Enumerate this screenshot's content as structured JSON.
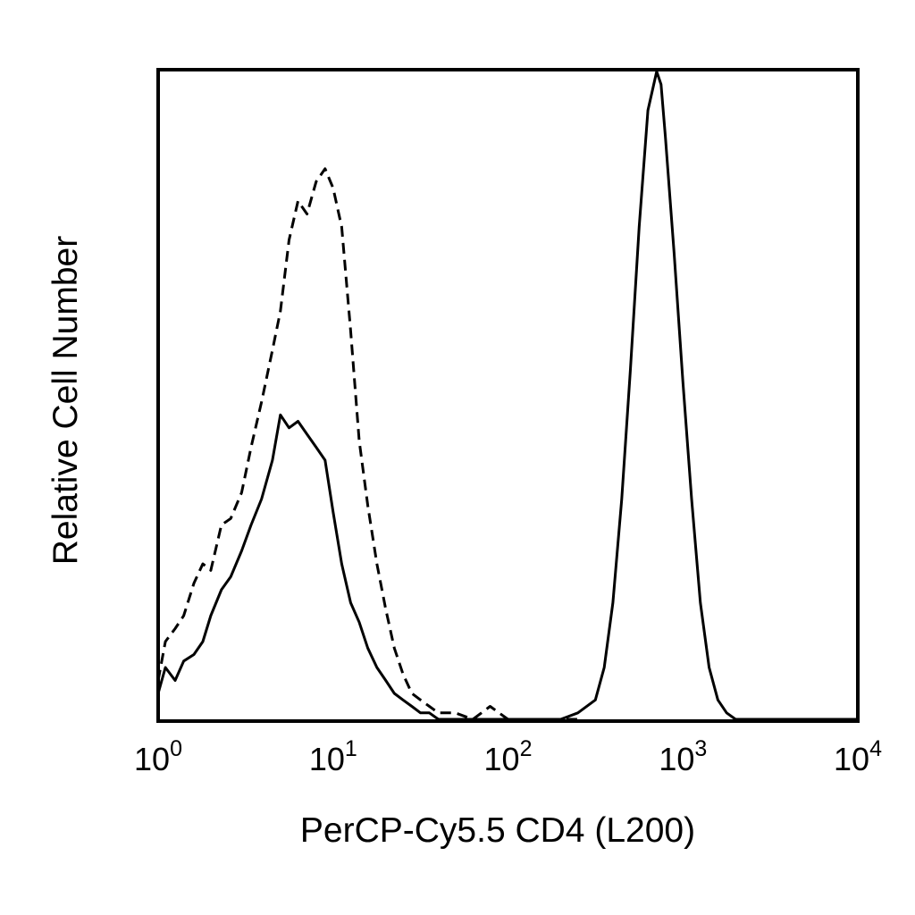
{
  "chart_data": {
    "type": "line",
    "title": "",
    "xlabel": "PerCP-Cy5.5 CD4 (L200)",
    "ylabel": "Relative Cell Number",
    "x_scale": "log",
    "xlim": [
      1,
      10000
    ],
    "ylim": [
      0,
      1
    ],
    "x_ticks": [
      {
        "value": 1,
        "base": "10",
        "exp": "0"
      },
      {
        "value": 10,
        "base": "10",
        "exp": "1"
      },
      {
        "value": 100,
        "base": "10",
        "exp": "2"
      },
      {
        "value": 1000,
        "base": "10",
        "exp": "3"
      },
      {
        "value": 10000,
        "base": "10",
        "exp": "4"
      }
    ],
    "grid": false,
    "legend": "none",
    "series": [
      {
        "style": "dashed",
        "x": [
          1.0,
          1.1,
          1.25,
          1.4,
          1.6,
          1.8,
          2.0,
          2.3,
          2.6,
          3.0,
          3.4,
          3.9,
          4.5,
          5.0,
          5.6,
          6.3,
          7.1,
          8.0,
          9.0,
          10.0,
          11.2,
          12.6,
          14.1,
          15.8,
          17.8,
          20.0,
          22.4,
          25.1,
          28.2,
          31.6,
          35.5,
          40.0,
          50.0,
          63.0,
          79.0,
          100.0,
          126.0,
          158.0,
          200.0,
          251.0
        ],
        "y": [
          0.06,
          0.12,
          0.14,
          0.16,
          0.21,
          0.24,
          0.23,
          0.3,
          0.31,
          0.35,
          0.42,
          0.49,
          0.57,
          0.63,
          0.74,
          0.8,
          0.78,
          0.83,
          0.85,
          0.82,
          0.76,
          0.6,
          0.43,
          0.33,
          0.24,
          0.17,
          0.11,
          0.07,
          0.04,
          0.03,
          0.02,
          0.01,
          0.01,
          0.0,
          0.02,
          0.0,
          0.0,
          0.0,
          0.0,
          0.0
        ]
      },
      {
        "style": "solid",
        "x": [
          1.0,
          1.1,
          1.25,
          1.4,
          1.6,
          1.8,
          2.0,
          2.3,
          2.6,
          3.0,
          3.4,
          3.9,
          4.5,
          5.0,
          5.6,
          6.3,
          7.1,
          8.0,
          9.0,
          10.0,
          11.2,
          12.6,
          14.1,
          15.8,
          17.8,
          20.0,
          22.4,
          25.1,
          28.2,
          31.6,
          35.5,
          40.0,
          50.0,
          63.0,
          79.0,
          100.0,
          126.0,
          158.0,
          200.0,
          251.0,
          316.0,
          355.0,
          398.0,
          447.0,
          501.0,
          562.0,
          631.0,
          708.0,
          750.0,
          794.0,
          891.0,
          1000.0,
          1122.0,
          1259.0,
          1413.0,
          1585.0,
          1778.0,
          2000.0,
          3000.0,
          5000.0,
          10000.0
        ],
        "y": [
          0.04,
          0.08,
          0.06,
          0.09,
          0.1,
          0.12,
          0.16,
          0.2,
          0.22,
          0.26,
          0.3,
          0.34,
          0.4,
          0.47,
          0.45,
          0.46,
          0.44,
          0.42,
          0.4,
          0.32,
          0.24,
          0.18,
          0.15,
          0.11,
          0.08,
          0.06,
          0.04,
          0.03,
          0.02,
          0.01,
          0.01,
          0.0,
          0.0,
          0.0,
          0.0,
          0.0,
          0.0,
          0.0,
          0.0,
          0.01,
          0.03,
          0.08,
          0.18,
          0.34,
          0.54,
          0.76,
          0.94,
          1.0,
          0.98,
          0.9,
          0.72,
          0.52,
          0.34,
          0.18,
          0.08,
          0.03,
          0.01,
          0.0,
          0.0,
          0.0,
          0.0
        ]
      }
    ]
  }
}
